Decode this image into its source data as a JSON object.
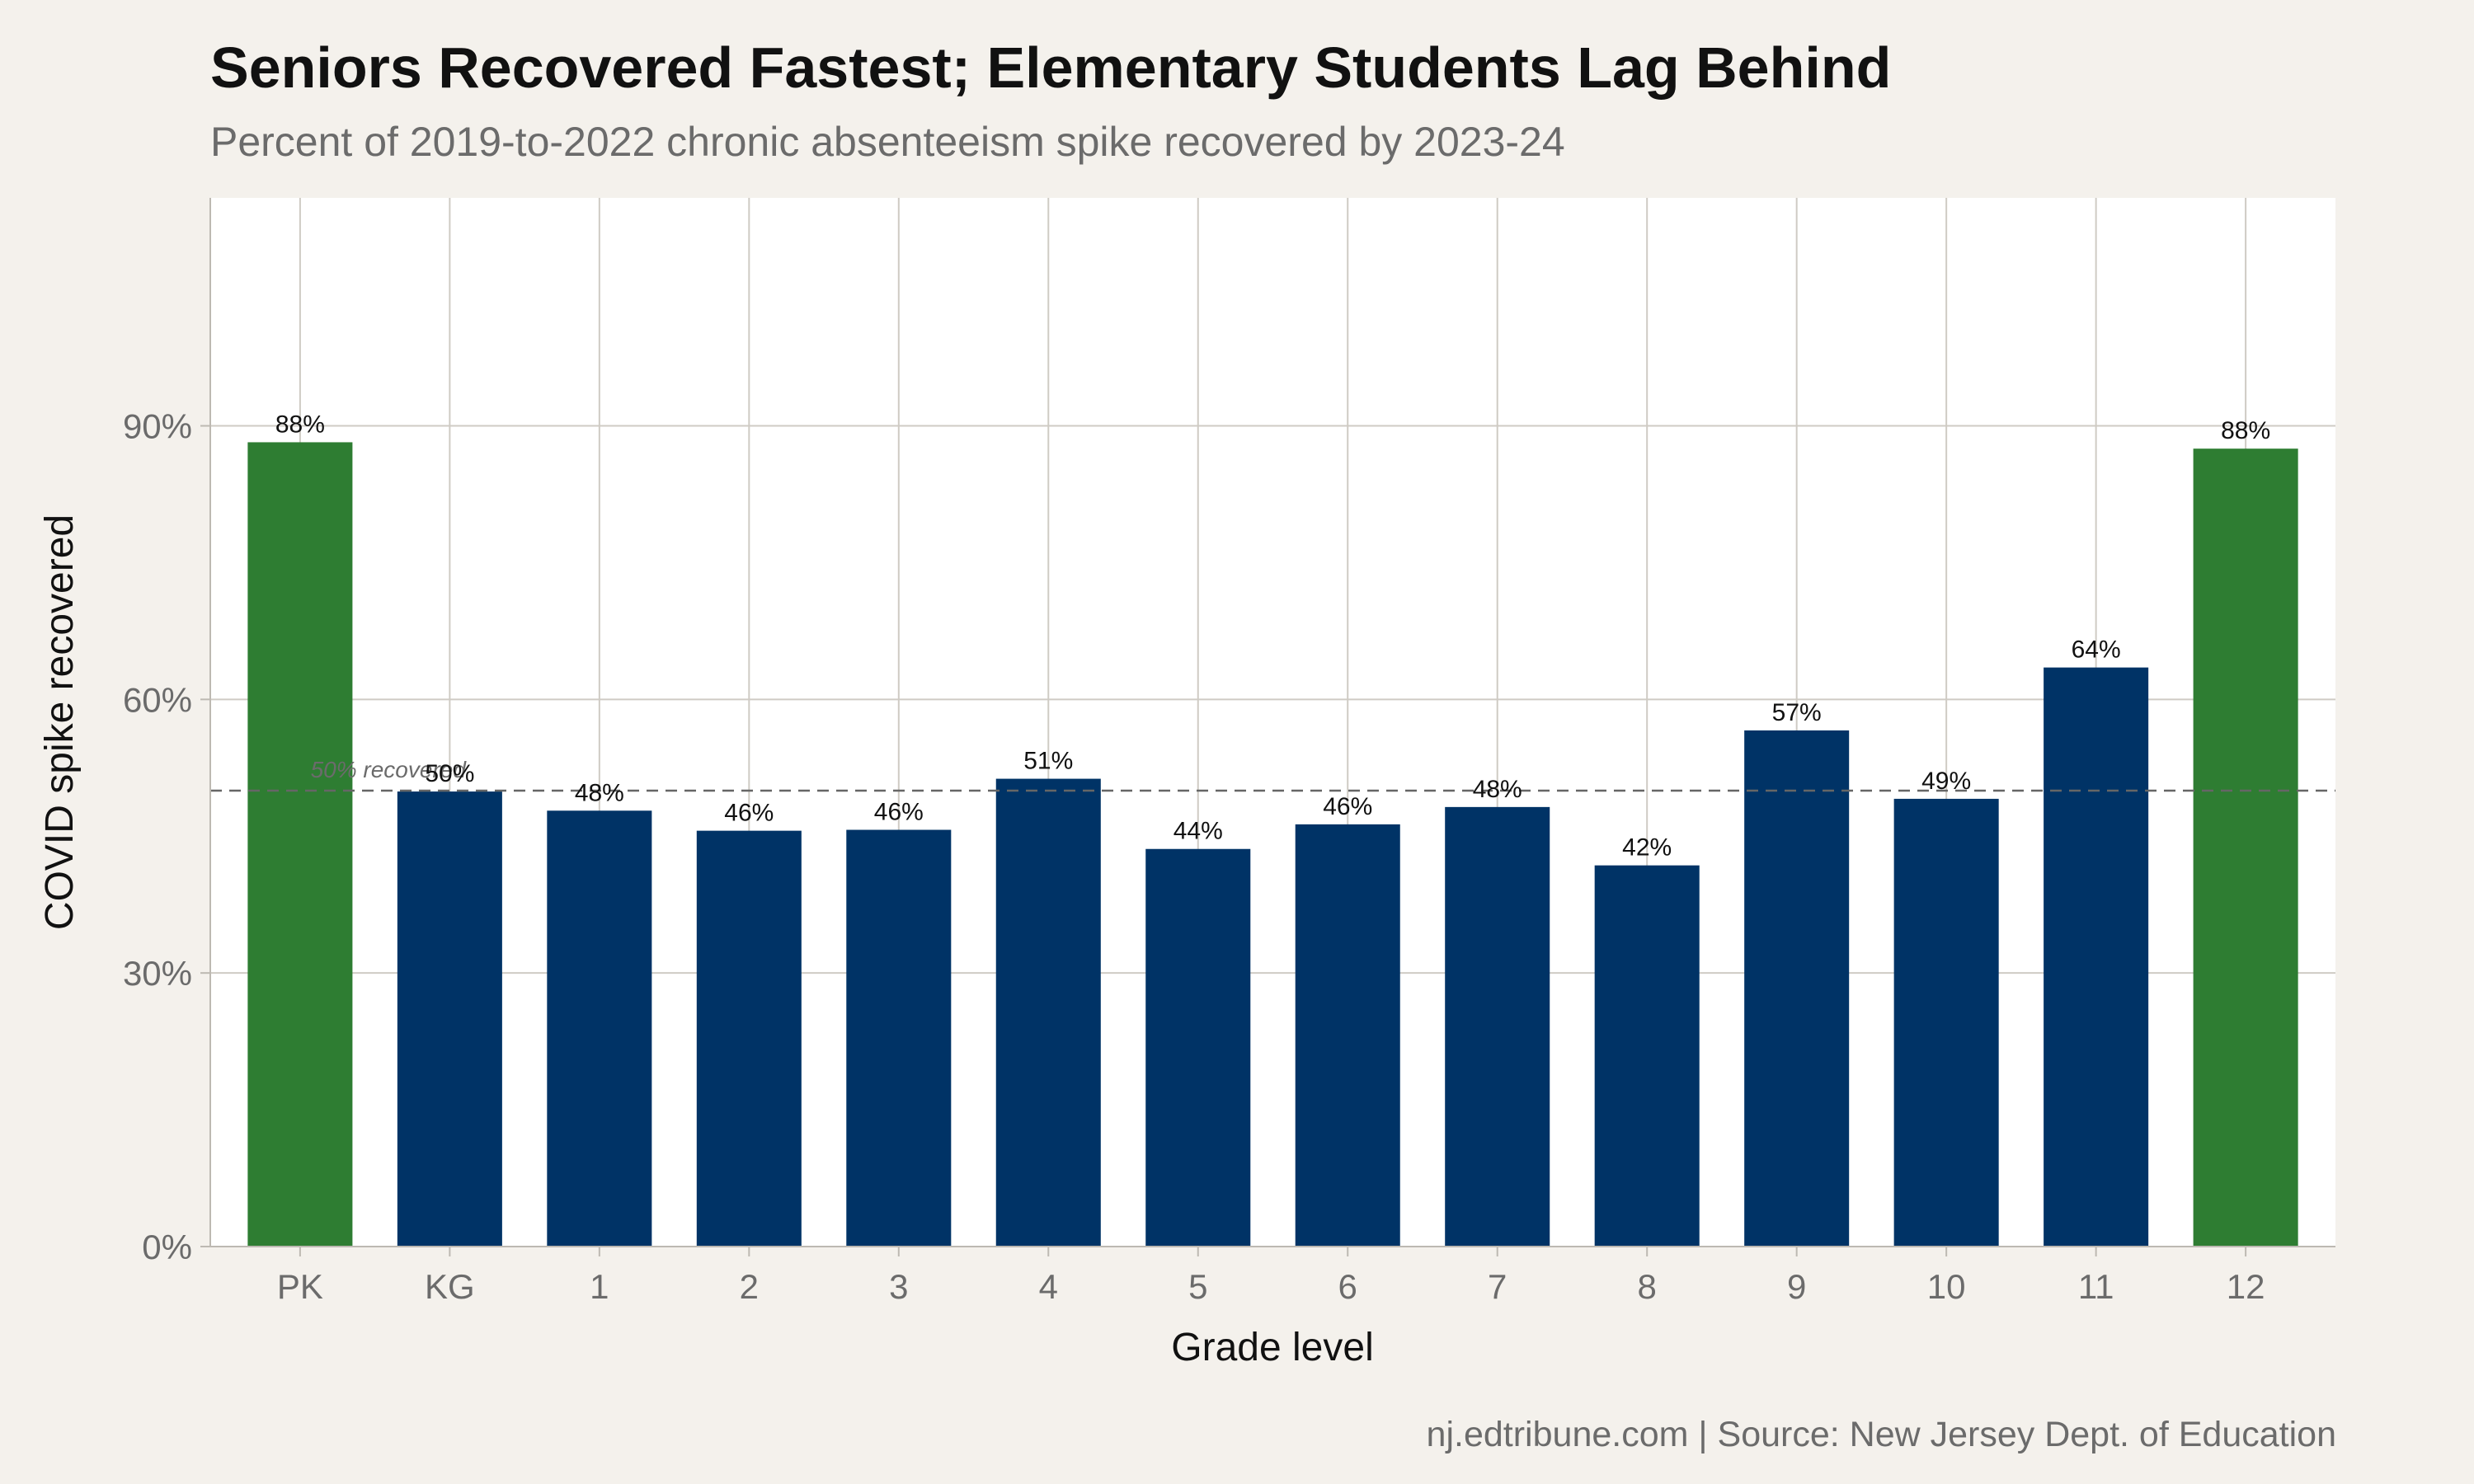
{
  "title": "Seniors Recovered Fastest; Elementary Students Lag Behind",
  "subtitle": "Percent of 2019-to-2022 chronic absenteeism spike recovered by 2023-24",
  "caption": "nj.edtribune.com | Source: New Jersey Dept. of Education",
  "chart_data": {
    "type": "bar",
    "title": "Seniors Recovered Fastest; Elementary Students Lag Behind",
    "subtitle": "Percent of 2019-to-2022 chronic absenteeism spike recovered by 2023-24",
    "xlabel": "Grade level",
    "ylabel": "COVID spike recovered",
    "categories": [
      "PK",
      "KG",
      "1",
      "2",
      "3",
      "4",
      "5",
      "6",
      "7",
      "8",
      "9",
      "10",
      "11",
      "12"
    ],
    "values": [
      88.2,
      49.9,
      47.8,
      45.6,
      45.7,
      51.3,
      43.6,
      46.3,
      48.2,
      41.8,
      56.6,
      49.1,
      63.5,
      87.5
    ],
    "value_labels": [
      "88%",
      "50%",
      "48%",
      "46%",
      "46%",
      "51%",
      "44%",
      "46%",
      "48%",
      "42%",
      "57%",
      "49%",
      "64%",
      "88%"
    ],
    "highlight": [
      true,
      false,
      false,
      false,
      false,
      false,
      false,
      false,
      false,
      false,
      false,
      false,
      false,
      true
    ],
    "colors": {
      "highlight": "#2e7d32",
      "default": "#003366",
      "reference": "#666666"
    },
    "ylim": [
      0,
      115
    ],
    "yticks": [
      0,
      30,
      60,
      90
    ],
    "ytick_labels": [
      "0%",
      "30%",
      "60%",
      "90%"
    ],
    "reference_line": {
      "value": 50,
      "label": "50% recovered"
    },
    "grid": true
  }
}
